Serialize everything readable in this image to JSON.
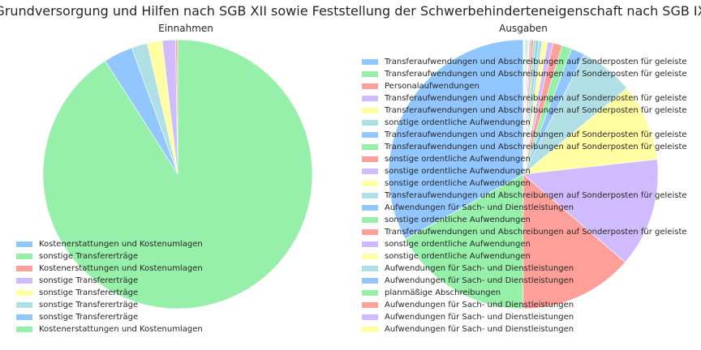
{
  "figure": {
    "title": "Grundversorgung und Hilfen nach SGB XII sowie Feststellung der Schwerbehinderteneigenschaft nach SGB IX"
  },
  "chart_data": [
    {
      "type": "pie",
      "title": "Einnahmen",
      "start_angle_deg": 90,
      "direction": "counterclockwise",
      "legend_position": "lower-left",
      "labels": [
        "Kostenerstattungen und Kostenumlagen",
        "sonstige Transfererträge",
        "Kostenerstattungen und Kostenumlagen",
        "sonstige Transfererträge",
        "sonstige Transfererträge",
        "sonstige Transfererträge",
        "sonstige Transfererträge",
        "Kostenerstattungen und Kostenumlagen"
      ],
      "values": [
        0.0,
        0.0,
        0.25,
        1.6,
        1.8,
        1.9,
        3.5,
        90.95
      ],
      "colors": [
        "#92c6ff",
        "#97f0aa",
        "#ff9f9a",
        "#d0bbff",
        "#fffea3",
        "#b0e0e6",
        "#92c6ff",
        "#97f0aa"
      ]
    },
    {
      "type": "pie",
      "title": "Ausgaben",
      "start_angle_deg": 90,
      "direction": "counterclockwise",
      "legend_position": "upper-left",
      "labels": [
        "Transferaufwendungen und Abschreibungen auf Sonderposten für geleiste",
        "Transferaufwendungen und Abschreibungen auf Sonderposten für geleiste",
        "Personalaufwendungen",
        "Transferaufwendungen und Abschreibungen auf Sonderposten für geleiste",
        "Transferaufwendungen und Abschreibungen auf Sonderposten für geleiste",
        "sonstige ordentliche Aufwendungen",
        "Transferaufwendungen und Abschreibungen auf Sonderposten für geleiste",
        "Transferaufwendungen und Abschreibungen auf Sonderposten für geleiste",
        "sonstige ordentliche Aufwendungen",
        "sonstige ordentliche Aufwendungen",
        "sonstige ordentliche Aufwendungen",
        "Transferaufwendungen und Abschreibungen auf Sonderposten für geleiste",
        "Aufwendungen für Sach- und Dienstleistungen",
        "sonstige ordentliche Aufwendungen",
        "Transferaufwendungen und Abschreibungen auf Sonderposten für geleiste",
        "sonstige ordentliche Aufwendungen",
        "sonstige ordentliche Aufwendungen",
        "Aufwendungen für Sach- und Dienstleistungen",
        "Aufwendungen für Sach- und Dienstleistungen",
        "planmäßige Abschreibungen",
        "Aufwendungen für Sach- und Dienstleistungen",
        "Aufwendungen für Sach- und Dienstleistungen",
        "Aufwendungen für Sach- und Dienstleistungen"
      ],
      "values": [
        30.2,
        15.5,
        12.5,
        12.0,
        8.5,
        5.9,
        1.5,
        1.1,
        1.0,
        0.6,
        0.6,
        0.4,
        0.3,
        0.25,
        0.25,
        0.2,
        0.15,
        0.15,
        0.1,
        0.1,
        0.05,
        0.05,
        0.05
      ],
      "colors": [
        "#92c6ff",
        "#97f0aa",
        "#ff9f9a",
        "#d0bbff",
        "#fffea3",
        "#b0e0e6",
        "#92c6ff",
        "#97f0aa",
        "#ff9f9a",
        "#d0bbff",
        "#fffea3",
        "#b0e0e6",
        "#92c6ff",
        "#97f0aa",
        "#ff9f9a",
        "#d0bbff",
        "#fffea3",
        "#b0e0e6",
        "#92c6ff",
        "#97f0aa",
        "#ff9f9a",
        "#d0bbff",
        "#fffea3"
      ]
    }
  ]
}
